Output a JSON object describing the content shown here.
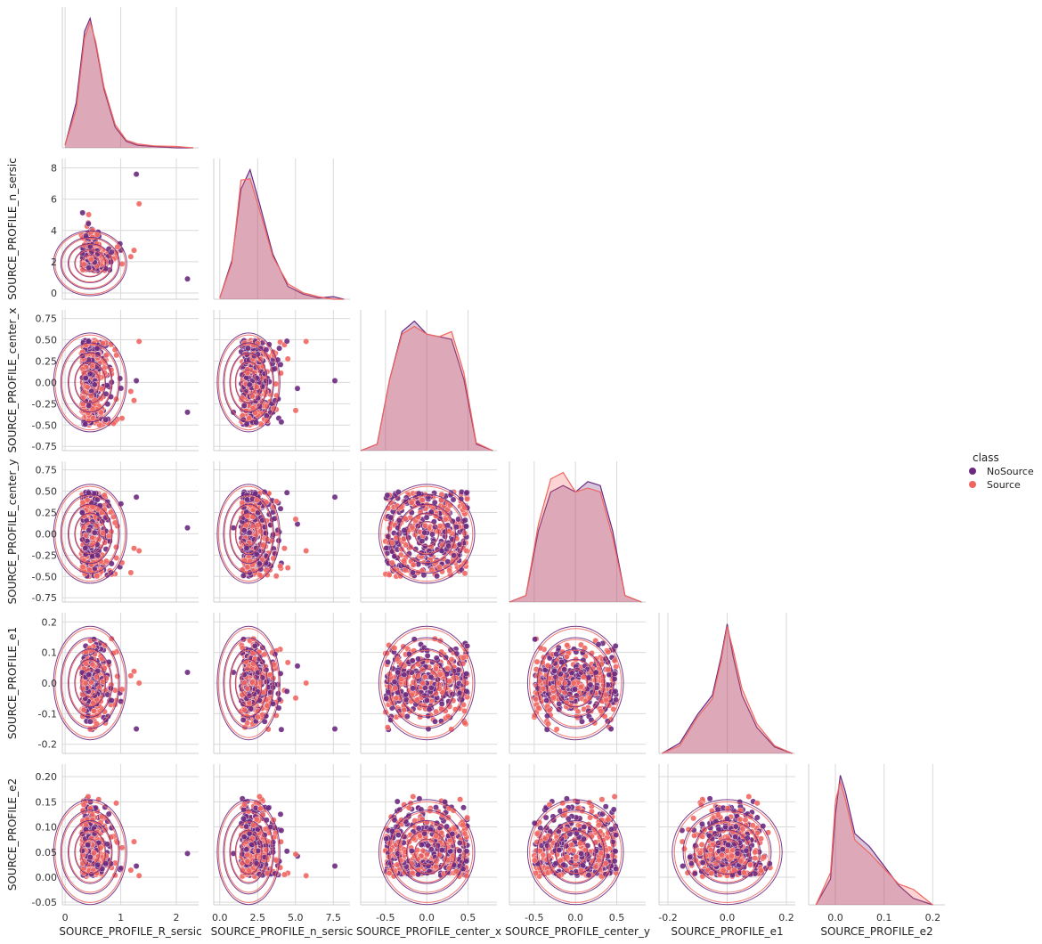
{
  "chart_data": {
    "type": "scatter",
    "variant": "pairplot-lower-corner",
    "diagonal": "kde",
    "offdiagonal": "scatter-with-kde-contours",
    "grid": true,
    "legend_placement": "right",
    "legend": {
      "title": "class",
      "entries": [
        {
          "name": "NoSource",
          "color": "#6b2a7f"
        },
        {
          "name": "Source",
          "color": "#f06660"
        }
      ]
    },
    "variables": [
      {
        "name": "SOURCE_PROFILE_R_sersic",
        "range": [
          -0.05,
          2.4
        ],
        "ticks": [
          0,
          1,
          2
        ],
        "tick_labels": [
          "0",
          "1",
          "2"
        ],
        "spread": 0.2,
        "mode": 0.45,
        "clip": [
          0.05,
          2.4
        ],
        "outliers": [
          2.2,
          1.33,
          1.28
        ]
      },
      {
        "name": "SOURCE_PROFILE_n_sersic",
        "range": [
          -0.4,
          8.6
        ],
        "ticks": [
          0,
          2,
          4,
          6,
          8
        ],
        "tick_labels": [
          "0",
          "2",
          "4",
          "6",
          "8"
        ],
        "ticks_x": [
          0,
          2.5,
          5,
          7.5
        ],
        "tick_labels_x": [
          "0.0",
          "2.5",
          "5.0",
          "7.5"
        ],
        "spread": 0.9,
        "mode": 1.9,
        "clip": [
          0.6,
          8.0
        ],
        "outliers": [
          0.9,
          5.7,
          7.6
        ]
      },
      {
        "name": "SOURCE_PROFILE_center_x",
        "range": [
          -0.8,
          0.85
        ],
        "ticks": [
          -0.75,
          -0.5,
          -0.25,
          0,
          0.25,
          0.5,
          0.75
        ],
        "tick_labels": [
          "-0.75",
          "-0.50",
          "-0.25",
          "0.00",
          "0.25",
          "0.50",
          "0.75"
        ],
        "ticks_x": [
          -0.5,
          0,
          0.5
        ],
        "tick_labels_x": [
          "-0.5",
          "0.0",
          "0.5"
        ],
        "spread": 0.5,
        "mode": 0.0,
        "clip": [
          -0.5,
          0.5
        ],
        "outliers": [
          -0.35,
          0.48,
          0.02
        ]
      },
      {
        "name": "SOURCE_PROFILE_center_y",
        "range": [
          -0.8,
          0.85
        ],
        "ticks": [
          -0.75,
          -0.5,
          -0.25,
          0,
          0.25,
          0.5,
          0.75
        ],
        "tick_labels": [
          "-0.75",
          "-0.50",
          "-0.25",
          "0.00",
          "0.25",
          "0.50",
          "0.75"
        ],
        "ticks_x": [
          -0.5,
          0,
          0.5
        ],
        "tick_labels_x": [
          "-0.5",
          "0.0",
          "0.5"
        ],
        "spread": 0.5,
        "mode": 0.0,
        "clip": [
          -0.5,
          0.5
        ],
        "outliers": [
          0.07,
          -0.2,
          0.43
        ]
      },
      {
        "name": "SOURCE_PROFILE_e1",
        "range": [
          -0.23,
          0.23
        ],
        "ticks": [
          -0.2,
          -0.1,
          0,
          0.1,
          0.2
        ],
        "tick_labels": [
          "-0.2",
          "-0.1",
          "0.0",
          "0.1",
          "0.2"
        ],
        "ticks_x": [
          -0.2,
          0,
          0.2
        ],
        "tick_labels_x": [
          "-0.2",
          "0.0",
          "0.2"
        ],
        "spread": 0.08,
        "mode": 0.0,
        "clip": [
          -0.16,
          0.16
        ],
        "outliers": [
          0.035,
          0.0,
          -0.15
        ]
      },
      {
        "name": "SOURCE_PROFILE_e2",
        "range": [
          -0.055,
          0.225
        ],
        "ticks": [
          -0.05,
          0,
          0.05,
          0.1,
          0.15,
          0.2
        ],
        "tick_labels": [
          "-0.05",
          "0.00",
          "0.05",
          "0.10",
          "0.15",
          "0.20"
        ],
        "ticks_x": [
          0,
          0.1,
          0.2
        ],
        "tick_labels_x": [
          "0.0",
          "0.1",
          "0.2"
        ],
        "spread": 0.05,
        "mode": 0.02,
        "clip": [
          0.0,
          0.18
        ],
        "outliers": [
          0.047,
          0.003,
          0.022
        ]
      }
    ],
    "kde_profiles": {
      "SOURCE_PROFILE_R_sersic": {
        "x": [
          0.0,
          0.2,
          0.35,
          0.45,
          0.55,
          0.7,
          0.9,
          1.1,
          1.3,
          1.6,
          2.0,
          2.3
        ],
        "NoSource": [
          0.02,
          0.35,
          0.9,
          1.0,
          0.8,
          0.45,
          0.16,
          0.05,
          0.02,
          0.01,
          0.0,
          0.0
        ],
        "Source": [
          0.02,
          0.3,
          0.85,
          0.97,
          0.82,
          0.47,
          0.18,
          0.06,
          0.03,
          0.015,
          0.01,
          0.0
        ]
      },
      "SOURCE_PROFILE_n_sersic": {
        "x": [
          0.0,
          0.8,
          1.4,
          2.0,
          2.6,
          3.5,
          4.5,
          5.5,
          6.5,
          7.5,
          8.2
        ],
        "NoSource": [
          0.01,
          0.3,
          0.85,
          1.0,
          0.75,
          0.35,
          0.1,
          0.04,
          0.01,
          0.02,
          0.0
        ],
        "Source": [
          0.01,
          0.28,
          0.92,
          0.93,
          0.7,
          0.33,
          0.12,
          0.05,
          0.02,
          0.0,
          0.0
        ]
      },
      "SOURCE_PROFILE_center_x": {
        "x": [
          -0.8,
          -0.6,
          -0.45,
          -0.3,
          -0.15,
          0.0,
          0.15,
          0.3,
          0.45,
          0.6,
          0.8
        ],
        "NoSource": [
          0.0,
          0.05,
          0.55,
          0.92,
          1.0,
          0.9,
          0.88,
          0.86,
          0.55,
          0.05,
          0.0
        ],
        "Source": [
          0.0,
          0.05,
          0.55,
          0.9,
          0.96,
          0.9,
          0.88,
          0.92,
          0.6,
          0.06,
          0.0
        ]
      },
      "SOURCE_PROFILE_center_y": {
        "x": [
          -0.8,
          -0.6,
          -0.45,
          -0.3,
          -0.15,
          0.0,
          0.15,
          0.3,
          0.45,
          0.6,
          0.8
        ],
        "NoSource": [
          0.0,
          0.05,
          0.55,
          0.85,
          0.9,
          0.85,
          0.93,
          0.9,
          0.55,
          0.05,
          0.0
        ],
        "Source": [
          0.0,
          0.05,
          0.6,
          0.95,
          1.0,
          0.85,
          0.88,
          0.85,
          0.5,
          0.05,
          0.0
        ]
      },
      "SOURCE_PROFILE_e1": {
        "x": [
          -0.22,
          -0.16,
          -0.1,
          -0.05,
          -0.02,
          0.0,
          0.02,
          0.05,
          0.1,
          0.16,
          0.22
        ],
        "NoSource": [
          0.0,
          0.08,
          0.3,
          0.45,
          0.75,
          1.0,
          0.75,
          0.45,
          0.2,
          0.05,
          0.0
        ],
        "Source": [
          0.0,
          0.06,
          0.28,
          0.42,
          0.72,
          0.98,
          0.8,
          0.5,
          0.23,
          0.06,
          0.0
        ]
      },
      "SOURCE_PROFILE_e2": {
        "x": [
          -0.04,
          -0.01,
          0.0,
          0.01,
          0.02,
          0.04,
          0.07,
          0.1,
          0.13,
          0.16,
          0.2
        ],
        "NoSource": [
          0.0,
          0.2,
          0.7,
          1.0,
          0.88,
          0.55,
          0.45,
          0.3,
          0.15,
          0.05,
          0.0
        ],
        "Source": [
          0.0,
          0.25,
          0.8,
          0.95,
          0.82,
          0.5,
          0.4,
          0.28,
          0.16,
          0.12,
          0.0
        ]
      }
    }
  }
}
